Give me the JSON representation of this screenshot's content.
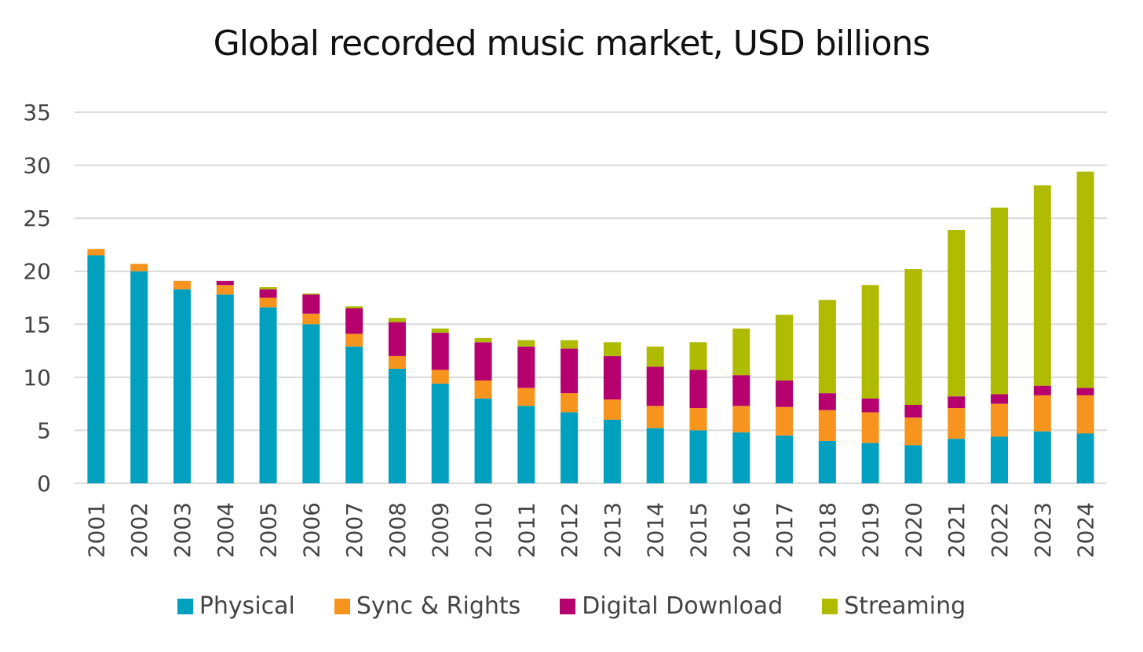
{
  "chart_data": {
    "type": "bar",
    "stacked": true,
    "title": "Global recorded music market, USD billions",
    "xlabel": "",
    "ylabel": "",
    "ylim": [
      0,
      35
    ],
    "yticks": [
      0,
      5,
      10,
      15,
      20,
      25,
      30,
      35
    ],
    "grid": true,
    "legend_position": "bottom",
    "categories": [
      "2001",
      "2002",
      "2003",
      "2004",
      "2005",
      "2006",
      "2007",
      "2008",
      "2009",
      "2010",
      "2011",
      "2012",
      "2013",
      "2014",
      "2015",
      "2016",
      "2017",
      "2018",
      "2019",
      "2020",
      "2021",
      "2022",
      "2023",
      "2024"
    ],
    "series": [
      {
        "name": "Physical",
        "color": "#00A0BE",
        "values": [
          21.5,
          20.0,
          18.3,
          17.8,
          16.6,
          15.0,
          12.9,
          10.8,
          9.4,
          8.0,
          7.3,
          6.7,
          6.0,
          5.2,
          5.0,
          4.8,
          4.5,
          4.0,
          3.8,
          3.6,
          4.2,
          4.4,
          4.9,
          4.7
        ]
      },
      {
        "name": "Sync & Rights",
        "color": "#F7941D",
        "values": [
          0.6,
          0.7,
          0.8,
          0.9,
          0.9,
          1.0,
          1.2,
          1.2,
          1.3,
          1.7,
          1.7,
          1.8,
          1.9,
          2.1,
          2.1,
          2.5,
          2.7,
          2.9,
          2.9,
          2.6,
          2.9,
          3.1,
          3.4,
          3.6
        ]
      },
      {
        "name": "Digital Download",
        "color": "#B5006D",
        "values": [
          0.0,
          0.0,
          0.0,
          0.4,
          0.8,
          1.8,
          2.4,
          3.2,
          3.5,
          3.6,
          3.9,
          4.2,
          4.1,
          3.7,
          3.6,
          2.9,
          2.5,
          1.6,
          1.3,
          1.2,
          1.1,
          0.9,
          0.9,
          0.7
        ]
      },
      {
        "name": "Streaming",
        "color": "#AEBB00",
        "values": [
          0.0,
          0.0,
          0.0,
          0.0,
          0.2,
          0.1,
          0.2,
          0.4,
          0.4,
          0.4,
          0.6,
          0.8,
          1.3,
          1.9,
          2.6,
          4.4,
          6.2,
          8.8,
          10.7,
          12.8,
          15.7,
          17.6,
          18.9,
          20.4
        ]
      }
    ]
  }
}
